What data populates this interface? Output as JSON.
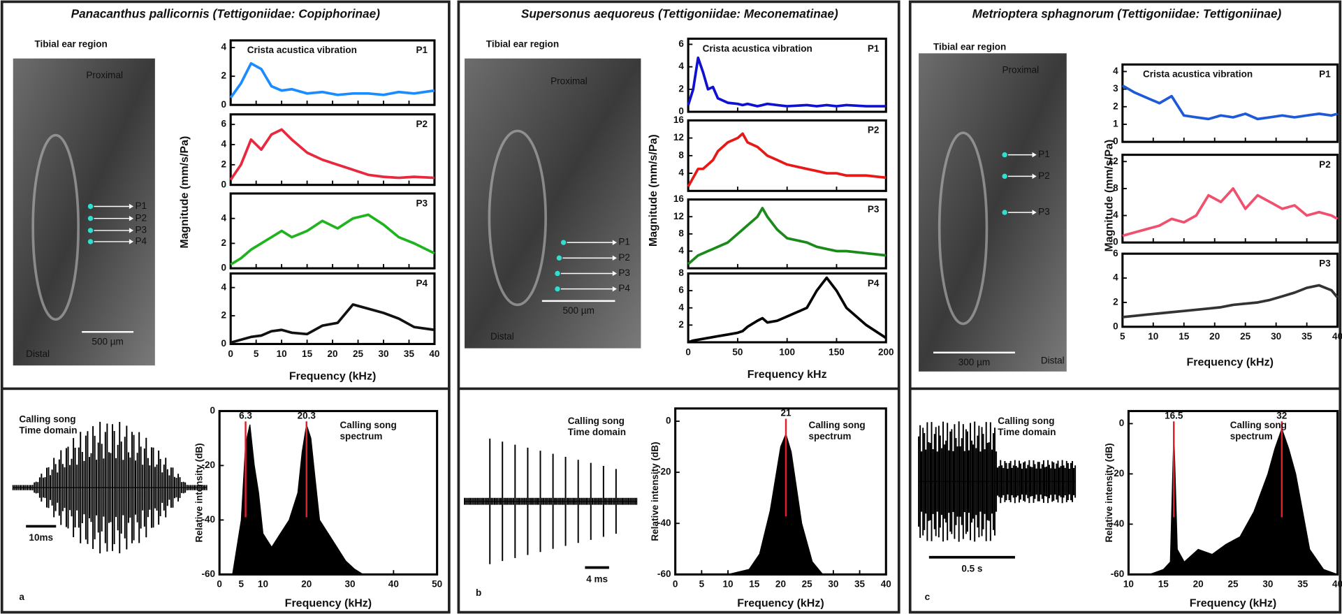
{
  "figure": {
    "panels": [
      {
        "letter": "a",
        "title": "Panacanthus pallicornis (Tettigoniidae: Copiphorinae)",
        "image_title": "Tibial ear region",
        "proximal": "Proximal",
        "distal": "Distal",
        "scale": "500 µm",
        "points": [
          "P1",
          "P2",
          "P3",
          "P4"
        ],
        "vib_title": "Crista acustica vibration",
        "vib_ylabel": "Magnitude (mm/s/Pa)",
        "vib_xlabel": "Frequency (kHz)",
        "song_time": [
          "Calling song",
          "Time domain"
        ],
        "time_scale": "10ms",
        "spectrum_title": [
          "Calling song",
          "spectrum"
        ],
        "spectrum_ylabel": "Relative intensity (dB)",
        "spectrum_xlabel": "Frequency (kHz)"
      },
      {
        "letter": "b",
        "title": "Supersonus aequoreus (Tettigoniidae: Meconematinae)",
        "image_title": "Tibial ear region",
        "proximal": "Proximal",
        "distal": "Distal",
        "scale": "500 µm",
        "points": [
          "P1",
          "P2",
          "P3",
          "P4"
        ],
        "vib_title": "Crista acustica vibration",
        "vib_ylabel": "Magnitude (mm/s/Pa)",
        "vib_xlabel": "Frequency kHz",
        "song_time": [
          "Calling song",
          "Time domain"
        ],
        "time_scale": "4 ms",
        "spectrum_title": [
          "Calling song",
          "spectrum"
        ],
        "spectrum_ylabel": "Relative intensity (dB)",
        "spectrum_xlabel": "Frequency (kHz)"
      },
      {
        "letter": "c",
        "title": "Metrioptera sphagnorum (Tettigoniidae: Tettigoniinae)",
        "image_title": "Tibial ear region",
        "proximal": "Proximal",
        "distal": "Distal",
        "scale": "300 µm",
        "points": [
          "P1",
          "P2",
          "P3"
        ],
        "vib_title": "Crista acustica vibration",
        "vib_ylabel": "Magnitude (mm/s/Pa)",
        "vib_xlabel": "Frequency (kHz)",
        "song_time": [
          "Calling song",
          "Time domain"
        ],
        "time_scale": "0.5 s",
        "spectrum_title": [
          "Calling song",
          "spectrum"
        ],
        "spectrum_ylabel": "Relative intensity (dB)",
        "spectrum_xlabel": "Frequency (kHz)"
      }
    ]
  },
  "chart_data": [
    {
      "type": "line",
      "title": "P1",
      "color": "#1a8cff",
      "xlim": [
        0,
        40
      ],
      "xticks": [
        0,
        5,
        10,
        15,
        20,
        25,
        30,
        35,
        40
      ],
      "ylim": [
        0,
        4.5
      ],
      "yticks": [
        0,
        2,
        4
      ],
      "x": [
        0,
        2,
        4,
        6,
        8,
        10,
        12,
        15,
        18,
        21,
        24,
        27,
        30,
        33,
        36,
        40
      ],
      "values": [
        0.5,
        1.5,
        2.9,
        2.5,
        1.3,
        1,
        1.1,
        0.8,
        0.9,
        0.7,
        0.8,
        0.8,
        0.7,
        0.9,
        0.8,
        1
      ]
    },
    {
      "type": "line",
      "title": "P2",
      "color": "#e8283c",
      "xlim": [
        0,
        40
      ],
      "xticks": [
        0,
        5,
        10,
        15,
        20,
        25,
        30,
        35,
        40
      ],
      "ylim": [
        0,
        7
      ],
      "yticks": [
        0,
        2,
        4,
        6
      ],
      "x": [
        0,
        2,
        4,
        6,
        8,
        10,
        12,
        15,
        18,
        21,
        24,
        27,
        30,
        33,
        36,
        40
      ],
      "values": [
        0.5,
        2,
        4.5,
        3.5,
        5,
        5.5,
        4.5,
        3.2,
        2.5,
        2,
        1.5,
        1,
        0.8,
        0.7,
        0.8,
        0.7
      ]
    },
    {
      "type": "line",
      "title": "P3",
      "color": "#1fb41f",
      "xlim": [
        0,
        40
      ],
      "xticks": [
        0,
        5,
        10,
        15,
        20,
        25,
        30,
        35,
        40
      ],
      "ylim": [
        0,
        6
      ],
      "yticks": [
        0,
        2,
        4
      ],
      "x": [
        0,
        2,
        4,
        6,
        8,
        10,
        12,
        15,
        18,
        21,
        24,
        27,
        30,
        33,
        36,
        40
      ],
      "values": [
        0.3,
        0.8,
        1.5,
        2,
        2.5,
        3,
        2.5,
        3,
        3.8,
        3.2,
        4,
        4.3,
        3.5,
        2.5,
        2,
        1.2
      ]
    },
    {
      "type": "line",
      "title": "P4",
      "color": "#111111",
      "xlim": [
        0,
        40
      ],
      "xticks": [
        0,
        5,
        10,
        15,
        20,
        25,
        30,
        35,
        40
      ],
      "ylim": [
        0,
        5
      ],
      "yticks": [
        0,
        2,
        4
      ],
      "x": [
        0,
        2,
        4,
        6,
        8,
        10,
        12,
        15,
        18,
        21,
        24,
        27,
        30,
        33,
        36,
        40
      ],
      "values": [
        0.1,
        0.3,
        0.5,
        0.6,
        0.9,
        1,
        0.8,
        0.7,
        1.3,
        1.5,
        2.8,
        2.5,
        2.2,
        1.8,
        1.2,
        1
      ]
    },
    {
      "type": "area",
      "color": "#000000",
      "peak_color": "#e0202a",
      "xlim": [
        0,
        50
      ],
      "xticks": [
        0,
        5,
        10,
        20,
        30,
        40,
        50
      ],
      "ylim": [
        -60,
        0
      ],
      "yticks": [
        -60,
        -40,
        -20,
        0
      ],
      "x": [
        0,
        3,
        5,
        6,
        7,
        8,
        9,
        10,
        12,
        14,
        16,
        18,
        19,
        20,
        21,
        22,
        23,
        25,
        27,
        29,
        31,
        33,
        35,
        40,
        50
      ],
      "values": [
        -60,
        -60,
        -40,
        -12,
        -5,
        -20,
        -30,
        -45,
        -50,
        -45,
        -40,
        -30,
        -15,
        -5,
        -10,
        -25,
        -40,
        -45,
        -50,
        -55,
        -58,
        -60,
        -60,
        -60,
        -60
      ],
      "annotations": [
        {
          "x": 6,
          "label": "6.3"
        },
        {
          "x": 20,
          "label": "20.3"
        }
      ]
    },
    {
      "type": "line",
      "title": "P1",
      "color": "#1010d0",
      "xlim": [
        0,
        200
      ],
      "xticks": [
        0,
        50,
        100,
        150,
        200
      ],
      "ylim": [
        0,
        6.5
      ],
      "yticks": [
        0,
        2,
        4,
        6
      ],
      "x": [
        0,
        5,
        10,
        15,
        20,
        25,
        30,
        40,
        50,
        55,
        60,
        70,
        75,
        80,
        90,
        100,
        120,
        130,
        140,
        150,
        160,
        180,
        200
      ],
      "values": [
        0.6,
        2,
        4.8,
        3.5,
        2,
        2.2,
        1.2,
        0.8,
        0.7,
        0.6,
        0.7,
        0.5,
        0.6,
        0.7,
        0.6,
        0.5,
        0.6,
        0.5,
        0.6,
        0.5,
        0.6,
        0.5,
        0.5
      ]
    },
    {
      "type": "line",
      "title": "P2",
      "color": "#e81818",
      "xlim": [
        0,
        200
      ],
      "xticks": [
        0,
        50,
        100,
        150,
        200
      ],
      "ylim": [
        0,
        16
      ],
      "yticks": [
        4,
        8,
        12,
        16
      ],
      "x": [
        0,
        5,
        10,
        15,
        20,
        25,
        30,
        40,
        50,
        55,
        60,
        70,
        75,
        80,
        90,
        100,
        120,
        130,
        140,
        150,
        160,
        180,
        200
      ],
      "values": [
        1,
        3,
        5,
        5,
        6,
        7,
        9,
        11,
        12,
        13,
        11,
        10,
        9,
        8,
        7,
        6,
        5,
        4.5,
        4,
        4,
        3.5,
        3.5,
        3
      ]
    },
    {
      "type": "line",
      "title": "P3",
      "color": "#1a8a1a",
      "xlim": [
        0,
        200
      ],
      "xticks": [
        0,
        50,
        100,
        150,
        200
      ],
      "ylim": [
        0,
        16
      ],
      "yticks": [
        4,
        8,
        12,
        16
      ],
      "x": [
        0,
        5,
        10,
        15,
        20,
        25,
        30,
        40,
        50,
        55,
        60,
        70,
        75,
        80,
        90,
        100,
        120,
        130,
        140,
        150,
        160,
        180,
        200
      ],
      "values": [
        1,
        2,
        3,
        3.5,
        4,
        4.5,
        5,
        6,
        8,
        9,
        10,
        12,
        14,
        12,
        9,
        7,
        6,
        5,
        4.5,
        4,
        4,
        3.5,
        3
      ]
    },
    {
      "type": "line",
      "title": "P4",
      "color": "#000000",
      "xlim": [
        0,
        200
      ],
      "xticks": [
        0,
        50,
        100,
        150,
        200
      ],
      "ylim": [
        0,
        8
      ],
      "yticks": [
        2,
        4,
        6,
        8
      ],
      "x": [
        0,
        5,
        10,
        15,
        20,
        25,
        30,
        40,
        50,
        55,
        60,
        70,
        75,
        80,
        90,
        100,
        120,
        130,
        140,
        150,
        160,
        180,
        200
      ],
      "values": [
        0,
        0.2,
        0.3,
        0.4,
        0.5,
        0.6,
        0.7,
        0.9,
        1.1,
        1.3,
        1.8,
        2.5,
        2.8,
        2.3,
        2.5,
        3,
        4,
        6,
        7.5,
        6,
        4,
        2,
        0.5
      ]
    },
    {
      "type": "area",
      "color": "#000000",
      "peak_color": "#e0202a",
      "xlim": [
        0,
        40
      ],
      "xticks": [
        0,
        5,
        10,
        15,
        20,
        25,
        30,
        35,
        40
      ],
      "ylim": [
        -60,
        5
      ],
      "yticks": [
        -60,
        -40,
        -20,
        0
      ],
      "x": [
        0,
        10,
        14,
        16,
        18,
        20,
        21,
        22,
        24,
        26,
        28,
        30,
        40
      ],
      "values": [
        -60,
        -60,
        -58,
        -52,
        -35,
        -10,
        -5,
        -12,
        -40,
        -55,
        -60,
        -60,
        -60
      ],
      "annotations": [
        {
          "x": 21,
          "label": "21"
        }
      ]
    },
    {
      "type": "line",
      "title": "P1",
      "color": "#1e5ad8",
      "xlim": [
        5,
        40
      ],
      "xticks": [
        5,
        10,
        15,
        20,
        25,
        30,
        35,
        40
      ],
      "ylim": [
        0,
        4.4
      ],
      "yticks": [
        0,
        1,
        2,
        3,
        4
      ],
      "x": [
        5,
        7,
        9,
        11,
        13,
        15,
        17,
        19,
        21,
        23,
        25,
        27,
        29,
        31,
        33,
        35,
        37,
        39,
        40
      ],
      "values": [
        3.2,
        2.8,
        2.5,
        2.2,
        2.6,
        1.5,
        1.4,
        1.3,
        1.5,
        1.4,
        1.6,
        1.3,
        1.4,
        1.5,
        1.4,
        1.5,
        1.6,
        1.5,
        1.6
      ]
    },
    {
      "type": "line",
      "title": "P2",
      "color": "#f0506e",
      "xlim": [
        5,
        40
      ],
      "xticks": [
        5,
        10,
        15,
        20,
        25,
        30,
        35,
        40
      ],
      "ylim": [
        0,
        13
      ],
      "yticks": [
        0,
        4,
        8,
        12
      ],
      "x": [
        5,
        7,
        9,
        11,
        13,
        15,
        17,
        19,
        21,
        23,
        25,
        27,
        29,
        31,
        33,
        35,
        37,
        39,
        40
      ],
      "values": [
        1,
        1.5,
        2,
        2.5,
        3.5,
        3,
        4,
        7,
        6,
        8,
        5,
        7,
        6,
        5,
        5.5,
        4,
        4.5,
        4,
        3.5
      ]
    },
    {
      "type": "line",
      "title": "P3",
      "color": "#333333",
      "xlim": [
        5,
        40
      ],
      "xticks": [
        5,
        10,
        15,
        20,
        25,
        30,
        35,
        40
      ],
      "ylim": [
        0,
        6
      ],
      "yticks": [
        0,
        2,
        4,
        6
      ],
      "x": [
        5,
        7,
        9,
        11,
        13,
        15,
        17,
        19,
        21,
        23,
        25,
        27,
        29,
        31,
        33,
        35,
        37,
        39,
        40
      ],
      "values": [
        0.8,
        0.9,
        1,
        1.1,
        1.2,
        1.3,
        1.4,
        1.5,
        1.6,
        1.8,
        1.9,
        2,
        2.2,
        2.5,
        2.8,
        3.2,
        3.4,
        3,
        2.4
      ]
    },
    {
      "type": "area",
      "color": "#000000",
      "peak_color": "#e0202a",
      "xlim": [
        10,
        40
      ],
      "xticks": [
        10,
        15,
        20,
        25,
        30,
        35,
        40
      ],
      "ylim": [
        -60,
        5
      ],
      "yticks": [
        -60,
        -40,
        -20,
        0
      ],
      "x": [
        10,
        13,
        15,
        16,
        16.5,
        17,
        18,
        20,
        22,
        24,
        26,
        28,
        30,
        31,
        32,
        33,
        34,
        35,
        36,
        38,
        40
      ],
      "values": [
        -60,
        -60,
        -58,
        -55,
        -3,
        -50,
        -55,
        -50,
        -52,
        -48,
        -45,
        -35,
        -20,
        -10,
        -2,
        -10,
        -20,
        -35,
        -50,
        -58,
        -60
      ],
      "annotations": [
        {
          "x": 16.5,
          "label": "16.5"
        },
        {
          "x": 32,
          "label": "32"
        }
      ]
    }
  ]
}
